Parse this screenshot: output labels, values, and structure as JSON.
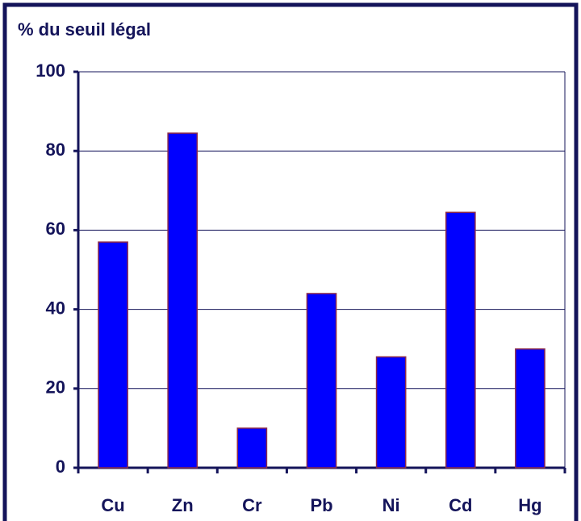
{
  "chart_data": {
    "type": "bar",
    "y_label": "% du seuil légal",
    "categories": [
      "Cu",
      "Zn",
      "Cr",
      "Pb",
      "Ni",
      "Cd",
      "Hg"
    ],
    "values": [
      57,
      84.5,
      10,
      44,
      28,
      64.5,
      30
    ],
    "color": "#0000ff",
    "edge_color": "#8b2a4a",
    "ylim": [
      0,
      100
    ],
    "yticks": [
      0,
      20,
      40,
      60,
      80,
      100
    ],
    "grid": true
  }
}
